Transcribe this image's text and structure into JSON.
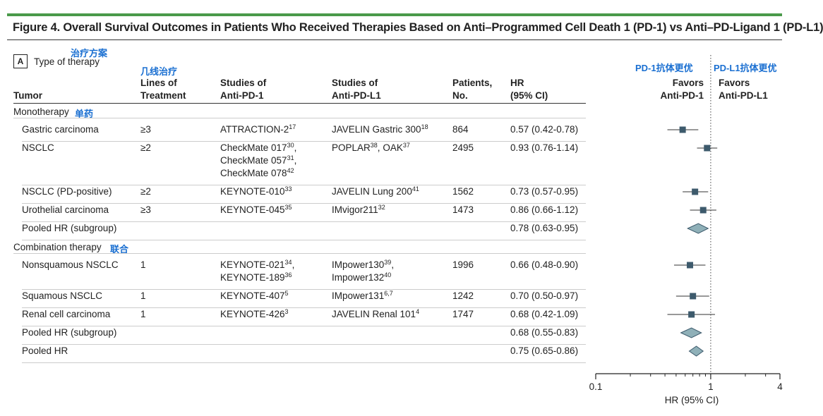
{
  "figure_title": "Figure 4. Overall Survival Outcomes in Patients Who Received Therapies Based on Anti–Programmed Cell Death 1 (PD-1) vs Anti–PD-Ligand 1 (PD-L1)",
  "panel": {
    "letter": "A",
    "label": "Type of therapy"
  },
  "annotations": {
    "type_of_therapy": "治疗方案",
    "lines": "几线治疗",
    "mono": "单药",
    "combo": "联合",
    "favors_pd1": "PD-1抗体更优",
    "favors_pdl1": "PD-L1抗体更优"
  },
  "headers": {
    "tumor": "Tumor",
    "lines_1": "Lines of",
    "lines_2": "Treatment",
    "pd1_1": "Studies of",
    "pd1_2": "Anti-PD-1",
    "pdl1_1": "Studies of",
    "pdl1_2": "Anti-PD-L1",
    "pts_1": "Patients,",
    "pts_2": "No.",
    "hr_1": "HR",
    "hr_2": "(95% CI)",
    "fav_pd1_1": "Favors",
    "fav_pd1_2": "Anti-PD-1",
    "fav_pdl1_1": "Favors",
    "fav_pdl1_2": "Anti-PD-L1"
  },
  "sections": {
    "mono": "Monotherapy",
    "combo": "Combination therapy"
  },
  "rows": [
    {
      "tumor": "Gastric carcinoma",
      "lines": "≥3",
      "pd1": [
        [
          "ATTRACTION-2",
          "17"
        ]
      ],
      "pdl1": [
        [
          "JAVELIN Gastric 300",
          "18"
        ]
      ],
      "patients": "864",
      "hr": "0.57 (0.42-0.78)"
    },
    {
      "tumor": "NSCLC",
      "lines": "≥2",
      "pd1": [
        [
          "CheckMate 017",
          "30"
        ],
        [
          "CheckMate 057",
          "31"
        ],
        [
          "CheckMate 078",
          "42"
        ]
      ],
      "pdl1": [
        [
          "POPLAR",
          "38"
        ],
        [
          "OAK",
          "37"
        ]
      ],
      "patients": "2495",
      "hr": "0.93 (0.76-1.14)"
    },
    {
      "tumor": "NSCLC (PD-positive)",
      "lines": "≥2",
      "pd1": [
        [
          "KEYNOTE-010",
          "33"
        ]
      ],
      "pdl1": [
        [
          "JAVELIN Lung 200",
          "41"
        ]
      ],
      "patients": "1562",
      "hr": "0.73 (0.57-0.95)"
    },
    {
      "tumor": "Urothelial carcinoma",
      "lines": "≥3",
      "pd1": [
        [
          "KEYNOTE-045",
          "35"
        ]
      ],
      "pdl1": [
        [
          "IMvigor211",
          "32"
        ]
      ],
      "patients": "1473",
      "hr": "0.86 (0.66-1.12)"
    },
    {
      "tumor": "Pooled HR (subgroup)",
      "lines": "",
      "pd1": [],
      "pdl1": [],
      "patients": "",
      "hr": "0.78 (0.63-0.95)"
    },
    {
      "tumor": "Nonsquamous NSCLC",
      "lines": "1",
      "pd1": [
        [
          "KEYNOTE-021",
          "34"
        ],
        [
          "KEYNOTE-189",
          "36"
        ]
      ],
      "pdl1": [
        [
          "IMpower130",
          "39"
        ],
        [
          "Impower132",
          "40"
        ]
      ],
      "patients": "1996",
      "hr": "0.66 (0.48-0.90)"
    },
    {
      "tumor": "Squamous NSCLC",
      "lines": "1",
      "pd1": [
        [
          "KEYNOTE-407",
          "5"
        ]
      ],
      "pdl1": [
        [
          "IMpower131",
          "6,7"
        ]
      ],
      "patients": "1242",
      "hr": "0.70 (0.50-0.97)"
    },
    {
      "tumor": "Renal cell carcinoma",
      "lines": "1",
      "pd1": [
        [
          "KEYNOTE-426",
          "3"
        ]
      ],
      "pdl1": [
        [
          "JAVELIN Renal 101",
          "4"
        ]
      ],
      "patients": "1747",
      "hr": "0.68 (0.42-1.09)"
    },
    {
      "tumor": "Pooled HR (subgroup)",
      "lines": "",
      "pd1": [],
      "pdl1": [],
      "patients": "",
      "hr": "0.68 (0.55-0.83)"
    },
    {
      "tumor": "Pooled HR",
      "lines": "",
      "pd1": [],
      "pdl1": [],
      "patients": "",
      "hr": "0.75 (0.65-0.86)"
    }
  ],
  "chart_data": {
    "type": "forest",
    "xlabel": "HR (95% CI)",
    "xscale": "log",
    "xlim": [
      0.1,
      4
    ],
    "xticks": [
      "0.1",
      "1",
      "4"
    ],
    "reference_line": 1,
    "points": [
      {
        "label": "Gastric carcinoma",
        "hr": 0.57,
        "lo": 0.42,
        "hi": 0.78,
        "kind": "study"
      },
      {
        "label": "NSCLC",
        "hr": 0.93,
        "lo": 0.76,
        "hi": 1.14,
        "kind": "study"
      },
      {
        "label": "NSCLC (PD-positive)",
        "hr": 0.73,
        "lo": 0.57,
        "hi": 0.95,
        "kind": "study"
      },
      {
        "label": "Urothelial carcinoma",
        "hr": 0.86,
        "lo": 0.66,
        "hi": 1.12,
        "kind": "study"
      },
      {
        "label": "Pooled HR (subgroup)",
        "hr": 0.78,
        "lo": 0.63,
        "hi": 0.95,
        "kind": "pooled"
      },
      {
        "label": "Nonsquamous NSCLC",
        "hr": 0.66,
        "lo": 0.48,
        "hi": 0.9,
        "kind": "study"
      },
      {
        "label": "Squamous NSCLC",
        "hr": 0.7,
        "lo": 0.5,
        "hi": 0.97,
        "kind": "study"
      },
      {
        "label": "Renal cell carcinoma",
        "hr": 0.68,
        "lo": 0.42,
        "hi": 1.09,
        "kind": "study"
      },
      {
        "label": "Pooled HR (subgroup)",
        "hr": 0.68,
        "lo": 0.55,
        "hi": 0.83,
        "kind": "pooled"
      },
      {
        "label": "Pooled HR",
        "hr": 0.75,
        "lo": 0.65,
        "hi": 0.86,
        "kind": "pooled"
      }
    ],
    "colors": {
      "marker": "#3d5a6c",
      "diamond_fill": "#8fb0b8",
      "diamond_stroke": "#3d5a6c",
      "ci": "#333333"
    }
  }
}
